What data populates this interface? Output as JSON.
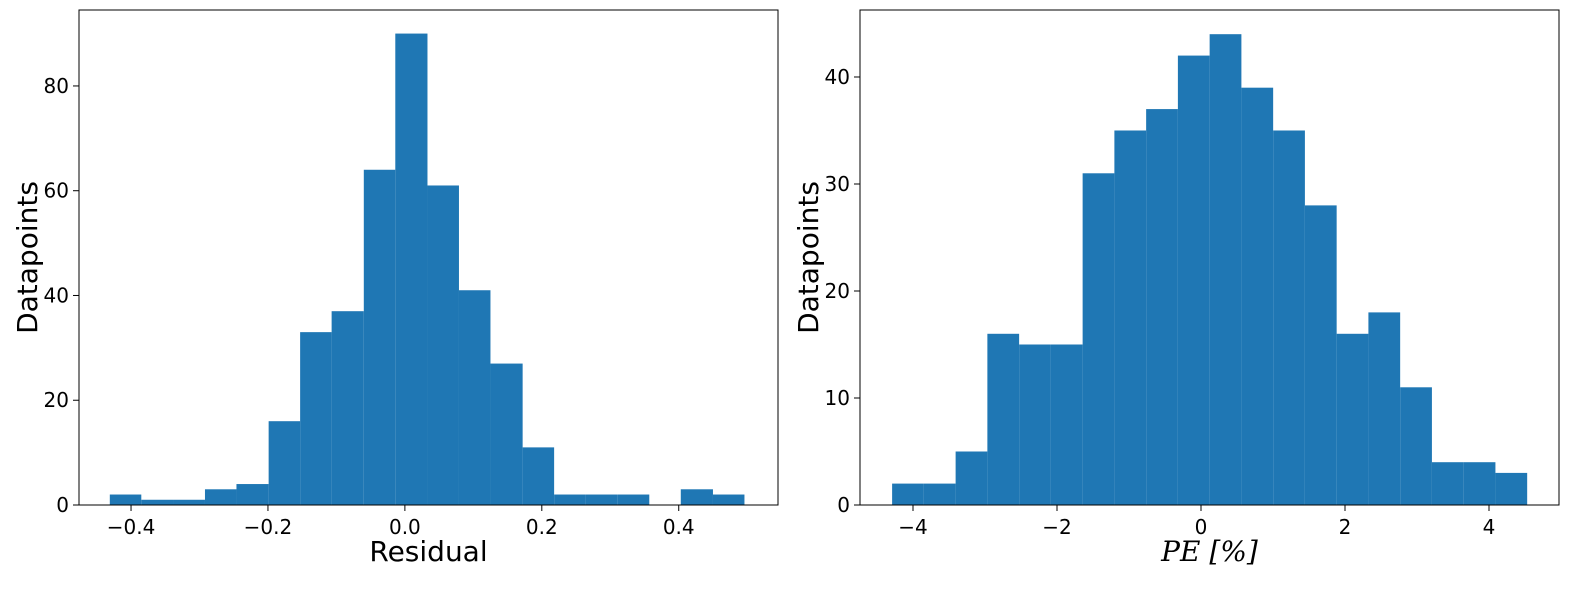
{
  "chart_data": [
    {
      "type": "histogram",
      "xlabel": "Residual",
      "ylabel": "Datapoints",
      "color": "#1f77b4",
      "bins": [
        -0.431,
        -0.385,
        -0.338,
        -0.292,
        -0.246,
        -0.199,
        -0.153,
        -0.107,
        -0.06,
        -0.014,
        0.033,
        0.079,
        0.125,
        0.172,
        0.218,
        0.264,
        0.311,
        0.357,
        0.403,
        0.45,
        0.496
      ],
      "values": [
        2,
        1,
        1,
        3,
        4,
        16,
        33,
        37,
        64,
        90,
        61,
        41,
        27,
        11,
        2,
        2,
        2,
        0,
        3,
        2
      ],
      "xlim": [
        -0.476,
        0.545
      ],
      "ylim": [
        0,
        94.5
      ],
      "xticks": [
        {
          "value": -0.4,
          "label": "−0.4"
        },
        {
          "value": -0.2,
          "label": "−0.2"
        },
        {
          "value": 0,
          "label": "0.0"
        },
        0.2,
        0.4
      ],
      "yticks": [
        0,
        20,
        40,
        60,
        80
      ]
    },
    {
      "type": "histogram",
      "xlabel": "PE [%]",
      "ylabel": "Datapoints",
      "color": "#1f77b4",
      "bins": [
        -4.29,
        -3.849,
        -3.408,
        -2.967,
        -2.526,
        -2.085,
        -1.644,
        -1.203,
        -0.762,
        -0.321,
        0.12,
        0.561,
        1.002,
        1.443,
        1.884,
        2.325,
        2.766,
        3.207,
        3.648,
        4.089,
        4.53
      ],
      "values": [
        2,
        2,
        5,
        16,
        15,
        15,
        31,
        35,
        37,
        42,
        44,
        39,
        35,
        28,
        16,
        18,
        11,
        4,
        4,
        3
      ],
      "xlim": [
        -4.736,
        4.972
      ],
      "ylim": [
        0,
        46.26
      ],
      "xticks": [
        {
          "value": -4,
          "label": "−4"
        },
        {
          "value": -2,
          "label": "−2"
        },
        0,
        2,
        4
      ],
      "yticks": [
        0,
        10,
        20,
        30,
        40
      ]
    }
  ]
}
